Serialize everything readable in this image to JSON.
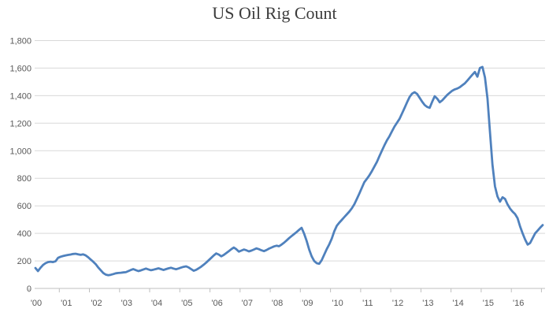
{
  "chart": {
    "line_color": "#4f81bd",
    "gridline_color": "#d9d9d9",
    "axis_color": "#bfbfbf",
    "tick_label_color": "#595959",
    "title_color": "#3c3c3c",
    "background": "#ffffff"
  },
  "chart_data": {
    "type": "line",
    "title": "US Oil Rig Count",
    "xlabel": "",
    "ylabel": "",
    "legend": "none",
    "grid": "horizontal",
    "ylim": [
      0,
      1800
    ],
    "y_ticks": [
      0,
      200,
      400,
      600,
      800,
      1000,
      1200,
      1400,
      1600,
      1800
    ],
    "y_tick_labels": [
      "0",
      "200",
      "400",
      "600",
      "800",
      "1,000",
      "1,200",
      "1,400",
      "1,600",
      "1,800"
    ],
    "x_tick_labels": [
      "'00",
      "'01",
      "'02",
      "'03",
      "'04",
      "'05",
      "'06",
      "'07",
      "'08",
      "'09",
      "'10",
      "'11",
      "'12",
      "'13",
      "'14",
      "'15",
      "'16"
    ],
    "x_start": "2000-01",
    "x_interval": "monthly",
    "x_end": "2016-11",
    "series": [
      {
        "name": "US oil rig count",
        "values": [
          148,
          126,
          150,
          170,
          183,
          191,
          194,
          191,
          197,
          222,
          230,
          235,
          240,
          243,
          246,
          250,
          252,
          248,
          244,
          247,
          240,
          226,
          210,
          194,
          176,
          152,
          132,
          112,
          100,
          96,
          99,
          104,
          110,
          112,
          114,
          116,
          118,
          126,
          134,
          140,
          133,
          126,
          131,
          138,
          144,
          138,
          132,
          136,
          141,
          146,
          140,
          134,
          140,
          146,
          150,
          144,
          139,
          145,
          151,
          157,
          160,
          152,
          140,
          128,
          135,
          146,
          158,
          172,
          188,
          205,
          222,
          240,
          254,
          246,
          233,
          243,
          257,
          271,
          285,
          297,
          285,
          267,
          275,
          283,
          277,
          269,
          275,
          283,
          291,
          285,
          277,
          271,
          279,
          289,
          297,
          305,
          310,
          306,
          318,
          332,
          348,
          365,
          380,
          395,
          410,
          426,
          440,
          398,
          345,
          283,
          233,
          199,
          183,
          179,
          205,
          245,
          285,
          320,
          362,
          415,
          455,
          478,
          498,
          518,
          538,
          558,
          582,
          612,
          650,
          690,
          732,
          772,
          796,
          822,
          852,
          886,
          920,
          962,
          1002,
          1040,
          1076,
          1106,
          1142,
          1176,
          1204,
          1232,
          1272,
          1312,
          1352,
          1390,
          1415,
          1425,
          1412,
          1384,
          1356,
          1332,
          1318,
          1312,
          1356,
          1396,
          1378,
          1352,
          1366,
          1386,
          1406,
          1421,
          1436,
          1446,
          1452,
          1462,
          1476,
          1490,
          1510,
          1531,
          1552,
          1572,
          1538,
          1601,
          1609,
          1532,
          1380,
          1140,
          900,
          742,
          668,
          630,
          662,
          650,
          610,
          580,
          558,
          540,
          510,
          450,
          400,
          355,
          318,
          330,
          365,
          400,
          420,
          441,
          460
        ]
      }
    ]
  }
}
